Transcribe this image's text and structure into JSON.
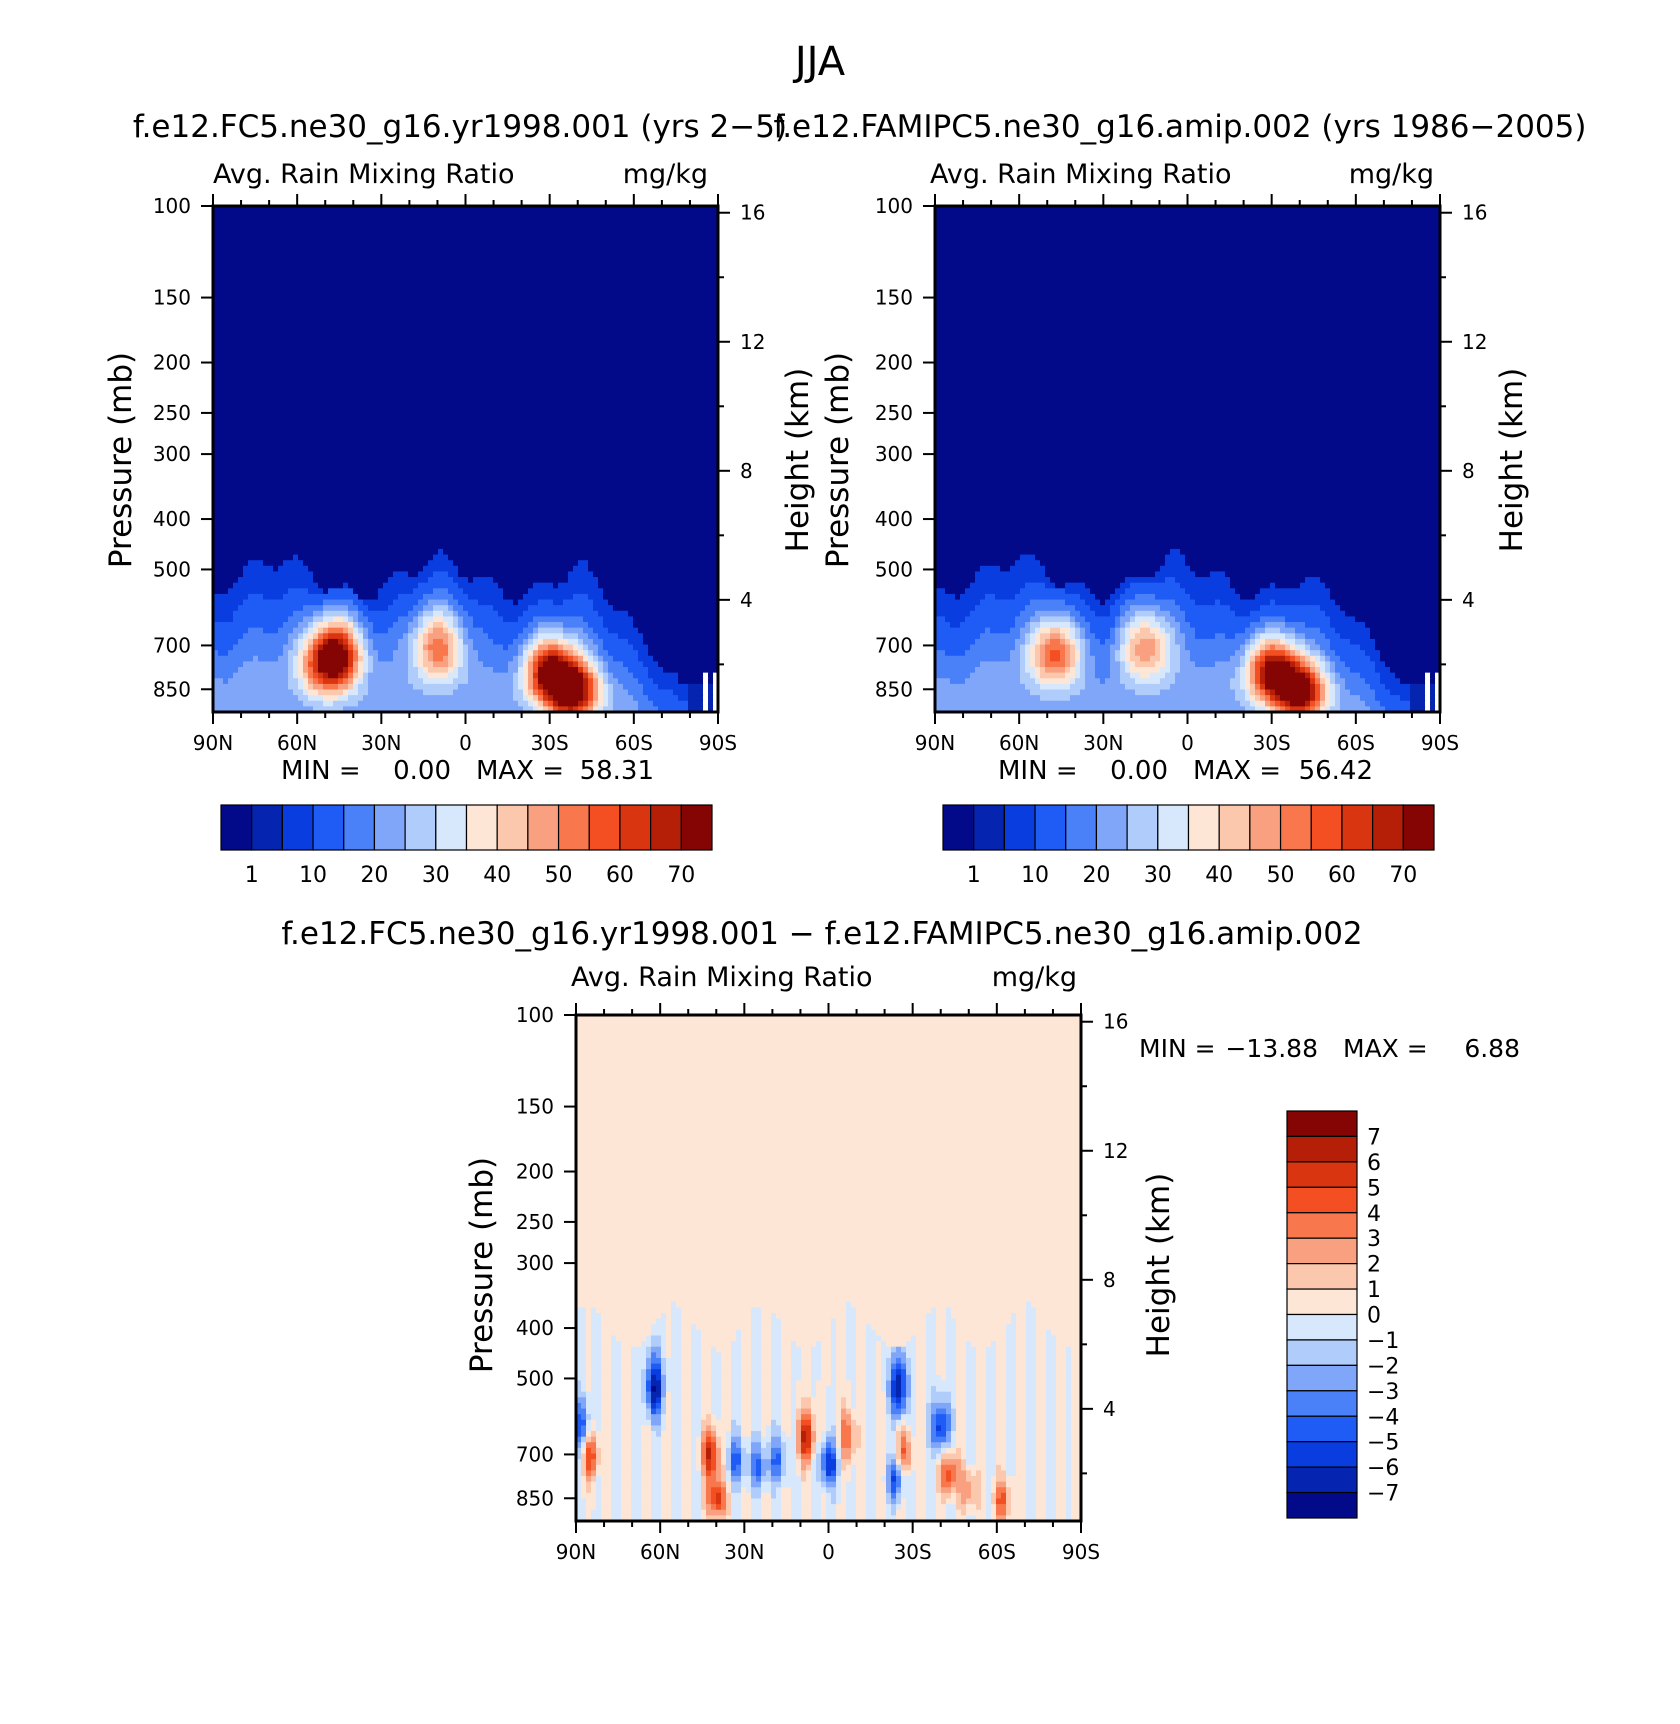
{
  "figure_title": "JJA",
  "colors": {
    "abs_scale": [
      "#020a8a",
      "#0524b0",
      "#0a3de0",
      "#1f5cf5",
      "#4a80f8",
      "#7fa6f9",
      "#b0ccfb",
      "#d8e8fc",
      "#fde6d6",
      "#fbc8ae",
      "#f9a080",
      "#f8774d",
      "#f34f22",
      "#d93510",
      "#b51f08",
      "#850404"
    ],
    "diff_scale": [
      "#020a8a",
      "#0524b0",
      "#0a3de0",
      "#1f5cf5",
      "#4a80f8",
      "#7fa6f9",
      "#b0ccfb",
      "#d8e8fc",
      "#fde6d6",
      "#fbc8ae",
      "#f9a080",
      "#f8774d",
      "#f34f22",
      "#d93510",
      "#b51f08",
      "#850404"
    ]
  },
  "chart_data": [
    {
      "type": "heatmap",
      "title": "f.e12.FC5.ne30_g16.yr1998.001 (yrs 2-5)",
      "left_string": "Avg. Rain Mixing Ratio",
      "right_string": "mg/kg",
      "xlabel": "",
      "ylabel": "Pressure (mb)",
      "y2label": "Height (km)",
      "x_ticks": [
        "90N",
        "60N",
        "30N",
        "0",
        "30S",
        "60S",
        "90S"
      ],
      "y_ticks": [
        "100",
        "150",
        "200",
        "250",
        "300",
        "400",
        "500",
        "700",
        "850"
      ],
      "y2_ticks": [
        "16",
        "12",
        "8",
        "4"
      ],
      "stats": {
        "min_label": "MIN =",
        "min": "0.00",
        "max_label": "MAX =",
        "max": "58.31"
      },
      "colorbar_labels": [
        "1",
        "10",
        "20",
        "30",
        "40",
        "50",
        "60",
        "70"
      ],
      "zlim": [
        0,
        75
      ],
      "features": [
        {
          "lat": 45,
          "p": 720,
          "v": 42
        },
        {
          "lat": 50,
          "p": 760,
          "v": 36
        },
        {
          "lat": 10,
          "p": 700,
          "v": 35
        },
        {
          "lat": -30,
          "p": 780,
          "v": 50
        },
        {
          "lat": -38,
          "p": 860,
          "v": 58
        }
      ]
    },
    {
      "type": "heatmap",
      "title": "f.e12.FAMIPC5.ne30_g16.amip.002 (yrs 1986-2005)",
      "left_string": "Avg. Rain Mixing Ratio",
      "right_string": "mg/kg",
      "xlabel": "",
      "ylabel": "Pressure (mb)",
      "y2label": "Height (km)",
      "x_ticks": [
        "90N",
        "60N",
        "30N",
        "0",
        "30S",
        "60S",
        "90S"
      ],
      "y_ticks": [
        "100",
        "150",
        "200",
        "250",
        "300",
        "400",
        "500",
        "700",
        "850"
      ],
      "y2_ticks": [
        "16",
        "12",
        "8",
        "4"
      ],
      "stats": {
        "min_label": "MIN =",
        "min": "0.00",
        "max_label": "MAX =",
        "max": "56.42"
      },
      "colorbar_labels": [
        "1",
        "10",
        "20",
        "30",
        "40",
        "50",
        "60",
        "70"
      ],
      "zlim": [
        0,
        75
      ],
      "features": [
        {
          "lat": 47,
          "p": 720,
          "v": 40
        },
        {
          "lat": 15,
          "p": 700,
          "v": 33
        },
        {
          "lat": -30,
          "p": 780,
          "v": 52
        },
        {
          "lat": -40,
          "p": 860,
          "v": 56
        }
      ]
    },
    {
      "type": "heatmap",
      "title": "f.e12.FC5.ne30_g16.yr1998.001 - f.e12.FAMIPC5.ne30_g16.amip.002",
      "left_string": "Avg. Rain Mixing Ratio",
      "right_string": "mg/kg",
      "xlabel": "",
      "ylabel": "Pressure (mb)",
      "y2label": "Height (km)",
      "x_ticks": [
        "90N",
        "60N",
        "30N",
        "0",
        "30S",
        "60S",
        "90S"
      ],
      "y_ticks": [
        "100",
        "150",
        "200",
        "250",
        "300",
        "400",
        "500",
        "700",
        "850"
      ],
      "y2_ticks": [
        "16",
        "12",
        "8",
        "4"
      ],
      "stats": {
        "min_label": "MIN =",
        "min": "-13.88",
        "max_label": "MAX =",
        "max": "6.88"
      },
      "colorbar_labels": [
        "7",
        "6",
        "5",
        "4",
        "3",
        "2",
        "1",
        "0",
        "-1",
        "-2",
        "-3",
        "-4",
        "-5",
        "-6",
        "-7"
      ],
      "zlim": [
        -8,
        8
      ],
      "features": [
        {
          "lat": 88,
          "p": 620,
          "v": -5
        },
        {
          "lat": 85,
          "p": 700,
          "v": 5
        },
        {
          "lat": 62,
          "p": 520,
          "v": -7
        },
        {
          "lat": 42,
          "p": 700,
          "v": 6
        },
        {
          "lat": 40,
          "p": 850,
          "v": 6
        },
        {
          "lat": 33,
          "p": 720,
          "v": -4
        },
        {
          "lat": 25,
          "p": 740,
          "v": -4
        },
        {
          "lat": 18,
          "p": 720,
          "v": -4
        },
        {
          "lat": 8,
          "p": 650,
          "v": 6
        },
        {
          "lat": 0,
          "p": 730,
          "v": -6
        },
        {
          "lat": -7,
          "p": 650,
          "v": 4
        },
        {
          "lat": -25,
          "p": 520,
          "v": -7
        },
        {
          "lat": -24,
          "p": 780,
          "v": -5
        },
        {
          "lat": -27,
          "p": 700,
          "v": 4
        },
        {
          "lat": -40,
          "p": 620,
          "v": -6
        },
        {
          "lat": -43,
          "p": 760,
          "v": 5
        },
        {
          "lat": -50,
          "p": 820,
          "v": 3
        },
        {
          "lat": -62,
          "p": 860,
          "v": 4
        }
      ]
    }
  ]
}
